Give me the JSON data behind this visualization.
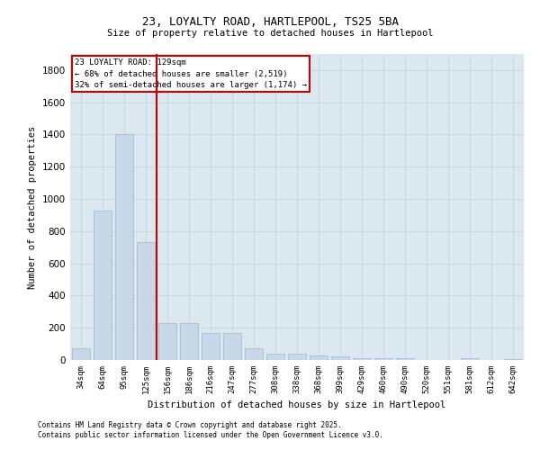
{
  "title_line1": "23, LOYALTY ROAD, HARTLEPOOL, TS25 5BA",
  "title_line2": "Size of property relative to detached houses in Hartlepool",
  "xlabel": "Distribution of detached houses by size in Hartlepool",
  "ylabel": "Number of detached properties",
  "categories": [
    "34sqm",
    "64sqm",
    "95sqm",
    "125sqm",
    "156sqm",
    "186sqm",
    "216sqm",
    "247sqm",
    "277sqm",
    "308sqm",
    "338sqm",
    "368sqm",
    "399sqm",
    "429sqm",
    "460sqm",
    "490sqm",
    "520sqm",
    "551sqm",
    "581sqm",
    "612sqm",
    "642sqm"
  ],
  "values": [
    75,
    930,
    1400,
    730,
    230,
    230,
    165,
    165,
    75,
    40,
    40,
    30,
    25,
    10,
    10,
    10,
    0,
    0,
    10,
    0,
    5
  ],
  "bar_color": "#c8d8e8",
  "bar_edge_color": "#a0b8cc",
  "vline_x_index": 3,
  "vline_color": "#cc0000",
  "annotation_text": "23 LOYALTY ROAD: 129sqm\n← 68% of detached houses are smaller (2,519)\n32% of semi-detached houses are larger (1,174) →",
  "annotation_box_color": "#ffffff",
  "annotation_box_edge": "#cc0000",
  "ylim": [
    0,
    1900
  ],
  "yticks": [
    0,
    200,
    400,
    600,
    800,
    1000,
    1200,
    1400,
    1600,
    1800
  ],
  "grid_color": "#c8d0d8",
  "bg_color": "#dce8f0",
  "footer_line1": "Contains HM Land Registry data © Crown copyright and database right 2025.",
  "footer_line2": "Contains public sector information licensed under the Open Government Licence v3.0."
}
